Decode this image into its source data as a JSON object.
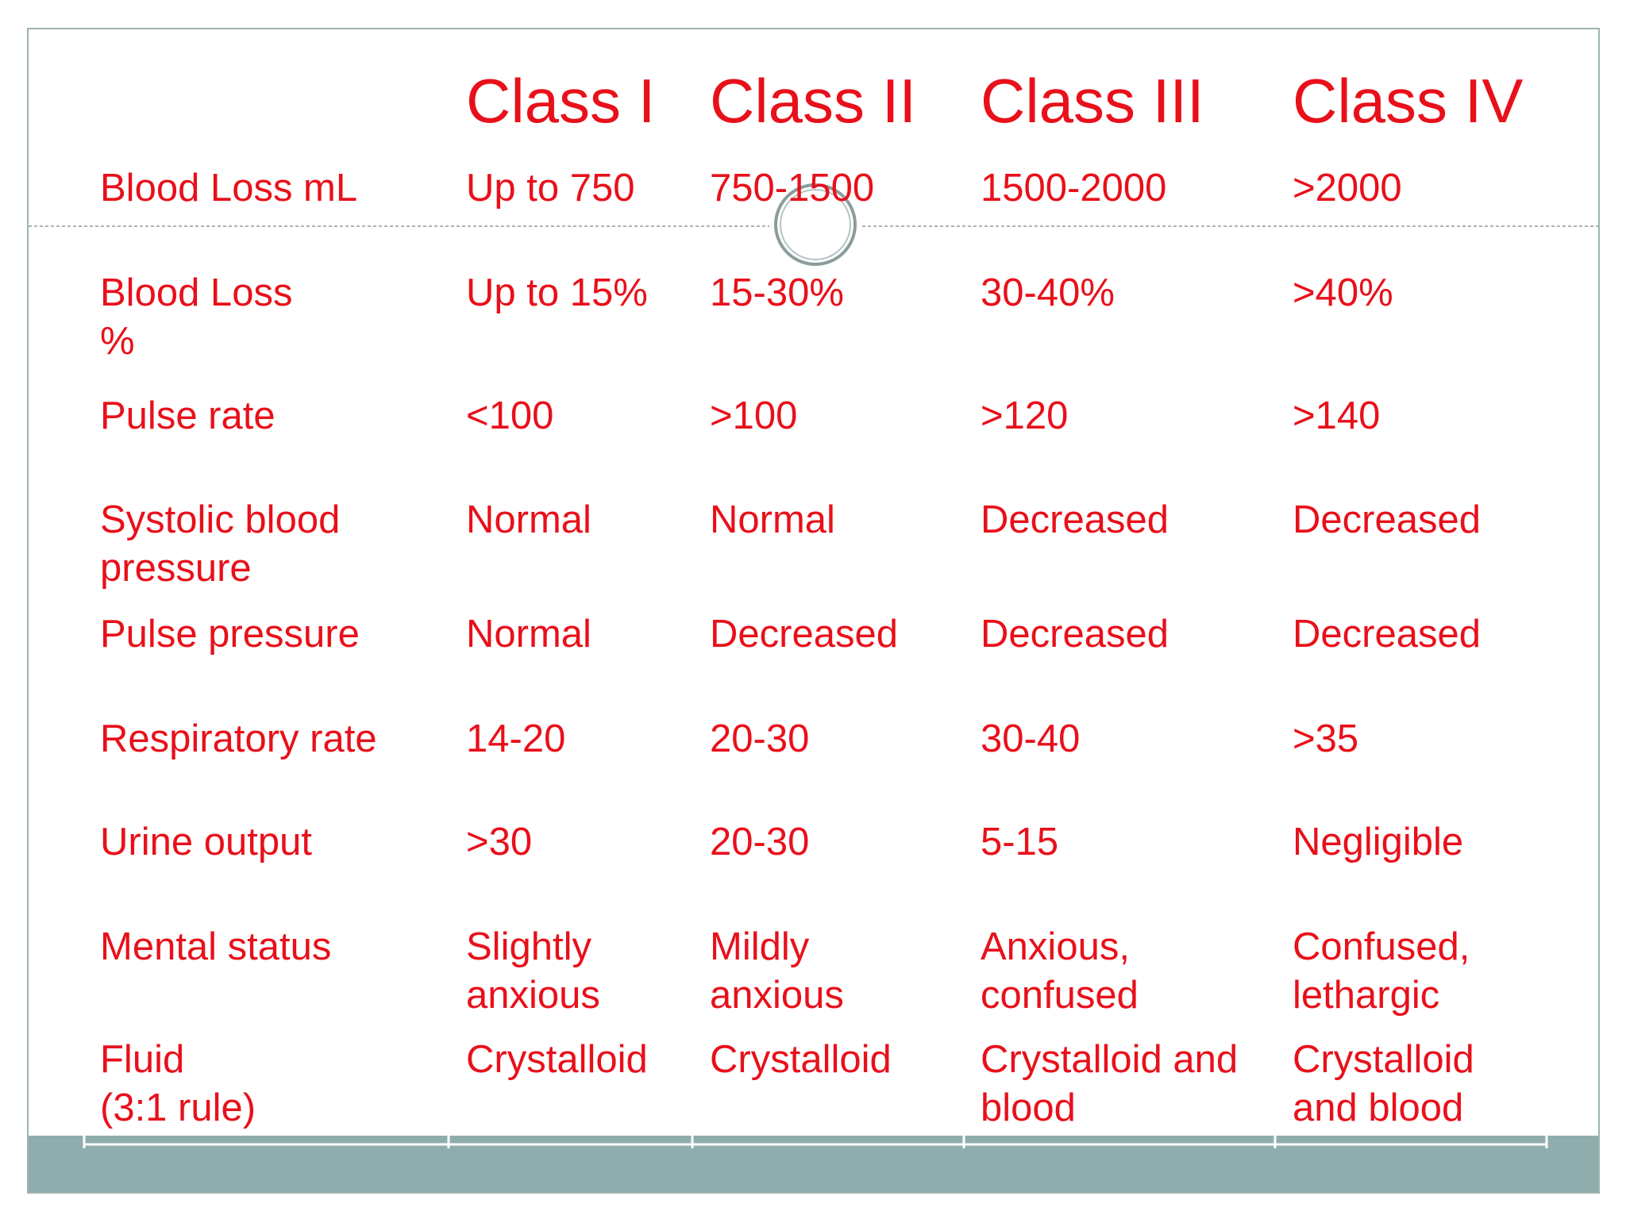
{
  "table": {
    "header": [
      "Class I",
      "Class II",
      "Class III",
      "Class IV"
    ],
    "rows": [
      [
        "Blood Loss mL",
        "Up to 750",
        "750-1500",
        "1500-2000",
        ">2000"
      ],
      [
        "Blood Loss\n%",
        "Up to 15%",
        "15-30%",
        "30-40%",
        ">40%"
      ],
      [
        "Pulse rate",
        "<100",
        ">100",
        ">120",
        ">140"
      ],
      [
        "Systolic blood\npressure",
        "Normal",
        "Normal",
        "Decreased",
        "Decreased"
      ],
      [
        "Pulse pressure",
        "Normal",
        "Decreased",
        "Decreased",
        "Decreased"
      ],
      [
        "Respiratory rate",
        "14-20",
        "20-30",
        "30-40",
        ">35"
      ],
      [
        "Urine output",
        ">30",
        "20-30",
        "5-15",
        "Negligible"
      ],
      [
        "Mental status",
        "Slightly\nanxious",
        "Mildly\nanxious",
        "Anxious,\nconfused",
        "Confused,\nlethargic"
      ],
      [
        "Fluid\n(3:1 rule)",
        "Crystalloid",
        "Crystalloid",
        "Crystalloid and\nblood",
        "Crystalloid\nand blood"
      ]
    ]
  }
}
